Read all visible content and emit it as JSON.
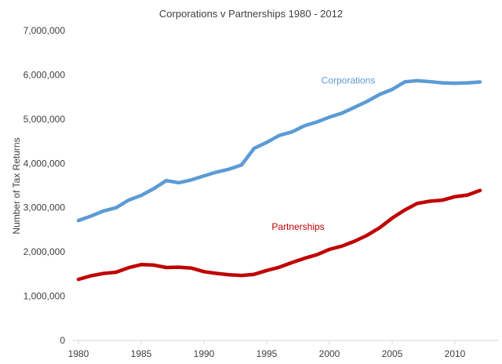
{
  "chart_data": {
    "type": "line",
    "title": "Corporations v Partnerships 1980 - 2012",
    "xlabel": "",
    "ylabel": "Number of Tax Returns",
    "xlim": [
      1979.5,
      2013.5
    ],
    "ylim": [
      0,
      7000000
    ],
    "x_ticks": [
      1980,
      1985,
      1990,
      1995,
      2000,
      2005,
      2010
    ],
    "y_ticks": [
      0,
      1000000,
      2000000,
      3000000,
      4000000,
      5000000,
      6000000,
      7000000
    ],
    "y_tick_labels": [
      "0",
      "1,000,000",
      "2,000,000",
      "3,000,000",
      "4,000,000",
      "5,000,000",
      "6,000,000",
      "7,000,000"
    ],
    "grid": false,
    "x": [
      1980,
      1981,
      1982,
      1983,
      1984,
      1985,
      1986,
      1987,
      1988,
      1989,
      1990,
      1991,
      1992,
      1993,
      1994,
      1995,
      1996,
      1997,
      1998,
      1999,
      2000,
      2001,
      2002,
      2003,
      2004,
      2005,
      2006,
      2007,
      2008,
      2009,
      2010,
      2011,
      2012
    ],
    "series": [
      {
        "name": "Corporations",
        "color": "#5b9bd5",
        "values": [
          2710000,
          2810000,
          2925000,
          2999000,
          3170000,
          3277000,
          3429000,
          3612000,
          3563000,
          3628000,
          3717000,
          3803000,
          3869000,
          3965000,
          4342000,
          4474000,
          4631000,
          4710000,
          4849000,
          4936000,
          5045000,
          5136000,
          5267000,
          5401000,
          5558000,
          5671000,
          5841000,
          5869000,
          5847000,
          5819000,
          5811000,
          5820000,
          5840000
        ]
      },
      {
        "name": "Partnerships",
        "color": "#c00000",
        "values": [
          1380000,
          1461000,
          1514000,
          1542000,
          1644000,
          1714000,
          1703000,
          1648000,
          1654000,
          1635000,
          1554000,
          1515000,
          1485000,
          1468000,
          1494000,
          1581000,
          1654000,
          1759000,
          1855000,
          1937000,
          2058000,
          2132000,
          2242000,
          2375000,
          2547000,
          2764000,
          2947000,
          3096000,
          3146000,
          3169000,
          3248000,
          3285000,
          3389000
        ]
      }
    ],
    "annotations": [
      {
        "text": "Corporations",
        "series": "Corporations",
        "x": 2001.5,
        "y": 5800000
      },
      {
        "text": "Partnerships",
        "series": "Partnerships",
        "x": 1997.5,
        "y": 2500000
      }
    ]
  }
}
